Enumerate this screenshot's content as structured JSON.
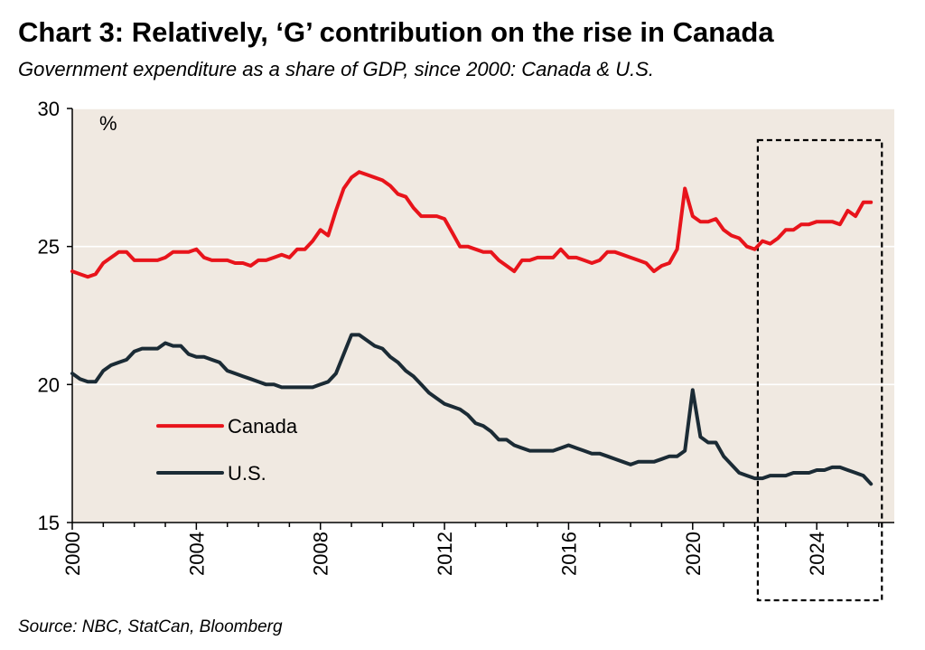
{
  "title": "Chart 3: Relatively, ‘G’ contribution on the rise in Canada",
  "subtitle": "Government expenditure as a share of GDP, since 2000: Canada & U.S.",
  "source": "Source: NBC, StatCan, Bloomberg",
  "chart_data": {
    "type": "line",
    "xlabel": "",
    "ylabel": "%",
    "xlim": [
      2000,
      2026.5
    ],
    "ylim": [
      15,
      30
    ],
    "x_ticks": [
      "2000",
      "2004",
      "2008",
      "2012",
      "2016",
      "2020",
      "2024"
    ],
    "y_ticks": [
      "15",
      "20",
      "25",
      "30"
    ],
    "grid": "horizontal",
    "background_color": "#f0e9e1",
    "legend_placement": "lower-left",
    "highlight_box": {
      "x_start": 2022.1,
      "x_end": 2026.1,
      "style": "dashed"
    },
    "series": [
      {
        "name": "Canada",
        "color": "#e8141b",
        "x": [
          2000.0,
          2000.25,
          2000.5,
          2000.75,
          2001.0,
          2001.25,
          2001.5,
          2001.75,
          2002.0,
          2002.25,
          2002.5,
          2002.75,
          2003.0,
          2003.25,
          2003.5,
          2003.75,
          2004.0,
          2004.25,
          2004.5,
          2004.75,
          2005.0,
          2005.25,
          2005.5,
          2005.75,
          2006.0,
          2006.25,
          2006.5,
          2006.75,
          2007.0,
          2007.25,
          2007.5,
          2007.75,
          2008.0,
          2008.25,
          2008.5,
          2008.75,
          2009.0,
          2009.25,
          2009.5,
          2009.75,
          2010.0,
          2010.25,
          2010.5,
          2010.75,
          2011.0,
          2011.25,
          2011.5,
          2011.75,
          2012.0,
          2012.25,
          2012.5,
          2012.75,
          2013.0,
          2013.25,
          2013.5,
          2013.75,
          2014.0,
          2014.25,
          2014.5,
          2014.75,
          2015.0,
          2015.25,
          2015.5,
          2015.75,
          2016.0,
          2016.25,
          2016.5,
          2016.75,
          2017.0,
          2017.25,
          2017.5,
          2017.75,
          2018.0,
          2018.25,
          2018.5,
          2018.75,
          2019.0,
          2019.25,
          2019.5,
          2019.75,
          2020.0,
          2020.25,
          2020.5,
          2020.75,
          2021.0,
          2021.25,
          2021.5,
          2021.75,
          2022.0,
          2022.25,
          2022.5,
          2022.75,
          2023.0,
          2023.25,
          2023.5,
          2023.75,
          2024.0,
          2024.25,
          2024.5,
          2024.75,
          2025.0,
          2025.25,
          2025.5,
          2025.75
        ],
        "values": [
          24.1,
          24.0,
          23.9,
          24.0,
          24.4,
          24.6,
          24.8,
          24.8,
          24.5,
          24.5,
          24.5,
          24.5,
          24.6,
          24.8,
          24.8,
          24.8,
          24.9,
          24.6,
          24.5,
          24.5,
          24.5,
          24.4,
          24.4,
          24.3,
          24.5,
          24.5,
          24.6,
          24.7,
          24.6,
          24.9,
          24.9,
          25.2,
          25.6,
          25.4,
          26.3,
          27.1,
          27.5,
          27.7,
          27.6,
          27.5,
          27.4,
          27.2,
          26.9,
          26.8,
          26.4,
          26.1,
          26.1,
          26.1,
          26.0,
          25.5,
          25.0,
          25.0,
          24.9,
          24.8,
          24.8,
          24.5,
          24.3,
          24.1,
          24.5,
          24.5,
          24.6,
          24.6,
          24.6,
          24.9,
          24.6,
          24.6,
          24.5,
          24.4,
          24.5,
          24.8,
          24.8,
          24.7,
          24.6,
          24.5,
          24.4,
          24.1,
          24.3,
          24.4,
          24.9,
          27.1,
          26.1,
          25.9,
          25.9,
          26.0,
          25.6,
          25.4,
          25.3,
          25.0,
          24.9,
          25.2,
          25.1,
          25.3,
          25.6,
          25.6,
          25.8,
          25.8,
          25.9,
          25.9,
          25.9,
          25.8,
          26.3,
          26.1,
          26.6,
          26.6
        ]
      },
      {
        "name": "U.S.",
        "color": "#1b2b35",
        "x": [
          2000.0,
          2000.25,
          2000.5,
          2000.75,
          2001.0,
          2001.25,
          2001.5,
          2001.75,
          2002.0,
          2002.25,
          2002.5,
          2002.75,
          2003.0,
          2003.25,
          2003.5,
          2003.75,
          2004.0,
          2004.25,
          2004.5,
          2004.75,
          2005.0,
          2005.25,
          2005.5,
          2005.75,
          2006.0,
          2006.25,
          2006.5,
          2006.75,
          2007.0,
          2007.25,
          2007.5,
          2007.75,
          2008.0,
          2008.25,
          2008.5,
          2008.75,
          2009.0,
          2009.25,
          2009.5,
          2009.75,
          2010.0,
          2010.25,
          2010.5,
          2010.75,
          2011.0,
          2011.25,
          2011.5,
          2011.75,
          2012.0,
          2012.25,
          2012.5,
          2012.75,
          2013.0,
          2013.25,
          2013.5,
          2013.75,
          2014.0,
          2014.25,
          2014.5,
          2014.75,
          2015.0,
          2015.25,
          2015.5,
          2015.75,
          2016.0,
          2016.25,
          2016.5,
          2016.75,
          2017.0,
          2017.25,
          2017.5,
          2017.75,
          2018.0,
          2018.25,
          2018.5,
          2018.75,
          2019.0,
          2019.25,
          2019.5,
          2019.75,
          2020.0,
          2020.25,
          2020.5,
          2020.75,
          2021.0,
          2021.25,
          2021.5,
          2021.75,
          2022.0,
          2022.25,
          2022.5,
          2022.75,
          2023.0,
          2023.25,
          2023.5,
          2023.75,
          2024.0,
          2024.25,
          2024.5,
          2024.75,
          2025.0,
          2025.25,
          2025.5,
          2025.75
        ],
        "values": [
          20.4,
          20.2,
          20.1,
          20.1,
          20.5,
          20.7,
          20.8,
          20.9,
          21.2,
          21.3,
          21.3,
          21.3,
          21.5,
          21.4,
          21.4,
          21.1,
          21.0,
          21.0,
          20.9,
          20.8,
          20.5,
          20.4,
          20.3,
          20.2,
          20.1,
          20.0,
          20.0,
          19.9,
          19.9,
          19.9,
          19.9,
          19.9,
          20.0,
          20.1,
          20.4,
          21.1,
          21.8,
          21.8,
          21.6,
          21.4,
          21.3,
          21.0,
          20.8,
          20.5,
          20.3,
          20.0,
          19.7,
          19.5,
          19.3,
          19.2,
          19.1,
          18.9,
          18.6,
          18.5,
          18.3,
          18.0,
          18.0,
          17.8,
          17.7,
          17.6,
          17.6,
          17.6,
          17.6,
          17.7,
          17.8,
          17.7,
          17.6,
          17.5,
          17.5,
          17.4,
          17.3,
          17.2,
          17.1,
          17.2,
          17.2,
          17.2,
          17.3,
          17.4,
          17.4,
          17.6,
          19.8,
          18.1,
          17.9,
          17.9,
          17.4,
          17.1,
          16.8,
          16.7,
          16.6,
          16.6,
          16.7,
          16.7,
          16.7,
          16.8,
          16.8,
          16.8,
          16.9,
          16.9,
          17.0,
          17.0,
          16.9,
          16.8,
          16.7,
          16.4
        ]
      }
    ]
  }
}
